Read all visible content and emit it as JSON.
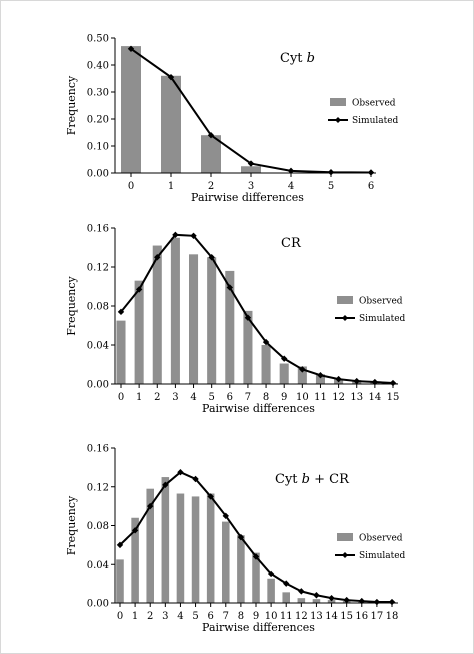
{
  "chart_data": [
    {
      "type": "bar",
      "title_main": "Cyt ",
      "title_italic": "b",
      "title_rest": "",
      "xlabel": "Pairwise differences",
      "ylabel": "Frequency",
      "x": [
        0,
        1,
        2,
        3,
        4,
        5,
        6
      ],
      "ylim": [
        0,
        0.5
      ],
      "yticks": [
        "0.00",
        "0.10",
        "0.20",
        "0.30",
        "0.40",
        "0.50"
      ],
      "series": [
        {
          "name": "Observed",
          "type": "bar",
          "values": [
            0.47,
            0.36,
            0.14,
            0.025,
            0.0,
            0.0,
            0.0
          ]
        },
        {
          "name": "Simulated",
          "type": "line",
          "values": [
            0.46,
            0.355,
            0.14,
            0.035,
            0.008,
            0.003,
            0.002
          ]
        }
      ],
      "legend": "right"
    },
    {
      "type": "bar",
      "title_main": "CR",
      "title_italic": "",
      "title_rest": "",
      "xlabel": "Pairwise differences",
      "ylabel": "Frequency",
      "x": [
        0,
        1,
        2,
        3,
        4,
        5,
        6,
        7,
        8,
        9,
        10,
        11,
        12,
        13,
        14,
        15
      ],
      "ylim": [
        0,
        0.16
      ],
      "yticks": [
        "0.00",
        "0.04",
        "0.08",
        "0.12",
        "0.16"
      ],
      "series": [
        {
          "name": "Observed",
          "type": "bar",
          "values": [
            0.065,
            0.106,
            0.142,
            0.15,
            0.133,
            0.13,
            0.116,
            0.075,
            0.04,
            0.021,
            0.018,
            0.01,
            0.005,
            0.004,
            0.002,
            0.001
          ]
        },
        {
          "name": "Simulated",
          "type": "line",
          "values": [
            0.074,
            0.097,
            0.13,
            0.153,
            0.152,
            0.13,
            0.099,
            0.068,
            0.043,
            0.026,
            0.015,
            0.009,
            0.005,
            0.003,
            0.002,
            0.001
          ]
        }
      ],
      "legend": "right"
    },
    {
      "type": "bar",
      "title_main": "Cyt ",
      "title_italic": "b",
      "title_rest": " + CR",
      "xlabel": "Pairwise differences",
      "ylabel": "Frequency",
      "x": [
        0,
        1,
        2,
        3,
        4,
        5,
        6,
        7,
        8,
        9,
        10,
        11,
        12,
        13,
        14,
        15,
        16,
        17,
        18
      ],
      "ylim": [
        0,
        0.16
      ],
      "yticks": [
        "0.00",
        "0.04",
        "0.08",
        "0.12",
        "0.16"
      ],
      "series": [
        {
          "name": "Observed",
          "type": "bar",
          "values": [
            0.045,
            0.088,
            0.118,
            0.13,
            0.113,
            0.11,
            0.113,
            0.084,
            0.07,
            0.052,
            0.025,
            0.011,
            0.005,
            0.004,
            0.003,
            0.002,
            0.001,
            0.001,
            0.001
          ]
        },
        {
          "name": "Simulated",
          "type": "line",
          "values": [
            0.06,
            0.075,
            0.1,
            0.122,
            0.135,
            0.128,
            0.11,
            0.09,
            0.068,
            0.048,
            0.03,
            0.02,
            0.012,
            0.008,
            0.005,
            0.003,
            0.002,
            0.001,
            0.001
          ]
        }
      ],
      "legend": "right"
    }
  ]
}
